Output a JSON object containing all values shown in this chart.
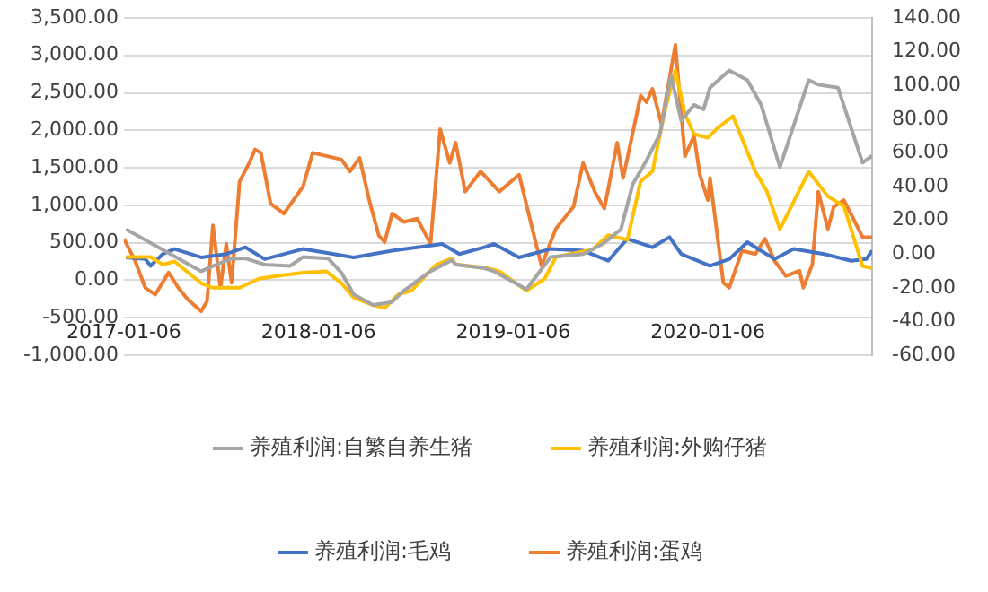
{
  "chart_data": {
    "type": "line",
    "xlim": [
      "2017-01-06",
      "2020-11-09"
    ],
    "xticks": [
      "2017-01-06",
      "2018-01-06",
      "2019-01-06",
      "2020-01-06"
    ],
    "ylim": [
      -1000,
      3500
    ],
    "yticks": [
      {
        "value": -1000,
        "label": "-1,000.00"
      },
      {
        "value": -500,
        "label": "-500.00"
      },
      {
        "value": 0,
        "label": "0.00"
      },
      {
        "value": 500,
        "label": "500.00"
      },
      {
        "value": 1000,
        "label": "1,000.00"
      },
      {
        "value": 1500,
        "label": "1,500.00"
      },
      {
        "value": 2000,
        "label": "2,000.00"
      },
      {
        "value": 2500,
        "label": "2,500.00"
      },
      {
        "value": 3000,
        "label": "3,000.00"
      },
      {
        "value": 3500,
        "label": "3,500.00"
      }
    ],
    "y2lim": [
      -60,
      140
    ],
    "y2ticks": [
      {
        "value": -60,
        "label": "-60.00"
      },
      {
        "value": -40,
        "label": "-40.00"
      },
      {
        "value": -20,
        "label": "-20.00"
      },
      {
        "value": 0,
        "label": "0.00"
      },
      {
        "value": 20,
        "label": "20.00"
      },
      {
        "value": 40,
        "label": "40.00"
      },
      {
        "value": 60,
        "label": "60.00"
      },
      {
        "value": 80,
        "label": "80.00"
      },
      {
        "value": 100,
        "label": "100.00"
      },
      {
        "value": 120,
        "label": "120.00"
      },
      {
        "value": 140,
        "label": "140.00"
      }
    ],
    "grid": "y",
    "legend": "bottom",
    "marker": "none",
    "line_style": "solid",
    "series": [
      {
        "name": "养殖利润:自繁自养生猪",
        "color": "#a5a5a5",
        "x": [
          "2017-01-10",
          "2017-05-31",
          "2017-06-22",
          "2017-07-27",
          "2017-08-22",
          "2017-09-27",
          "2017-11-13",
          "2017-12-08",
          "2018-01-24",
          "2018-02-18",
          "2018-03-13",
          "2018-04-18",
          "2018-05-24",
          "2018-06-15",
          "2018-08-04",
          "2018-09-13",
          "2018-09-20",
          "2018-11-13",
          "2018-12-01",
          "2019-01-31",
          "2019-03-17",
          "2019-05-17",
          "2019-06-22",
          "2019-07-27",
          "2019-08-18",
          "2019-09-13",
          "2019-10-08",
          "2019-10-29",
          "2019-11-17",
          "2019-12-11",
          "2019-12-29",
          "2020-01-10",
          "2020-02-15",
          "2020-03-20",
          "2020-04-15",
          "2020-05-20",
          "2020-07-13",
          "2020-07-31",
          "2020-09-06",
          "2020-10-22",
          "2020-11-09"
        ],
        "values": [
          680,
          120,
          190,
          290,
          290,
          210,
          190,
          310,
          290,
          100,
          -190,
          -330,
          -290,
          -140,
          120,
          270,
          210,
          160,
          120,
          -120,
          310,
          350,
          480,
          680,
          1280,
          1600,
          1950,
          2730,
          2130,
          2340,
          2280,
          2570,
          2800,
          2670,
          2340,
          1510,
          2670,
          2610,
          2570,
          1570,
          1660
        ]
      },
      {
        "name": "养殖利润:外购仔猪",
        "color": "#ffc000",
        "x": [
          "2017-01-10",
          "2017-02-25",
          "2017-03-20",
          "2017-04-11",
          "2017-05-31",
          "2017-06-22",
          "2017-08-11",
          "2017-09-16",
          "2017-10-22",
          "2017-12-08",
          "2018-01-20",
          "2018-02-18",
          "2018-03-13",
          "2018-04-18",
          "2018-05-10",
          "2018-06-04",
          "2018-06-29",
          "2018-07-20",
          "2018-08-15",
          "2018-09-13",
          "2018-09-20",
          "2018-11-13",
          "2018-12-11",
          "2019-01-31",
          "2019-03-06",
          "2019-03-27",
          "2019-06-04",
          "2019-07-03",
          "2019-08-08",
          "2019-09-02",
          "2019-09-24",
          "2019-10-18",
          "2019-11-06",
          "2019-11-24",
          "2019-12-11",
          "2020-01-06",
          "2020-01-24",
          "2020-02-22",
          "2020-04-04",
          "2020-04-26",
          "2020-05-20",
          "2020-07-13",
          "2020-08-18",
          "2020-09-17",
          "2020-10-22",
          "2020-11-09"
        ],
        "values": [
          310,
          310,
          210,
          250,
          -40,
          -100,
          -100,
          20,
          60,
          100,
          120,
          -40,
          -230,
          -330,
          -370,
          -190,
          -140,
          20,
          210,
          290,
          210,
          170,
          120,
          -140,
          20,
          310,
          410,
          600,
          540,
          1320,
          1450,
          2280,
          2800,
          2220,
          1950,
          1900,
          2030,
          2190,
          1450,
          1180,
          680,
          1450,
          1120,
          990,
          190,
          160
        ]
      },
      {
        "name": "养殖利润:毛鸡",
        "color": "#4472c4",
        "axis": "y2",
        "x": [
          "2017-01-10",
          "2017-02-15",
          "2017-02-25",
          "2017-03-20",
          "2017-04-11",
          "2017-05-31",
          "2017-07-17",
          "2017-08-22",
          "2017-09-27",
          "2017-12-08",
          "2018-03-13",
          "2018-05-24",
          "2018-08-26",
          "2018-09-27",
          "2018-11-13",
          "2018-12-01",
          "2019-01-17",
          "2019-03-17",
          "2019-05-17",
          "2019-07-03",
          "2019-08-08",
          "2019-09-24",
          "2019-10-26",
          "2019-11-17",
          "2020-01-10",
          "2020-02-15",
          "2020-03-20",
          "2020-05-10",
          "2020-06-15",
          "2020-08-11",
          "2020-10-01",
          "2020-10-29",
          "2020-11-09"
        ],
        "values": [
          -2,
          -3,
          -7,
          0,
          3,
          -2,
          0,
          4,
          -3,
          3,
          -2,
          2,
          6,
          0,
          4,
          6,
          -2,
          3,
          2,
          -4,
          9,
          4,
          10,
          0,
          -7,
          -3,
          7,
          -3,
          3,
          0,
          -4,
          -3,
          2
        ]
      },
      {
        "name": "养殖利润:蛋鸡",
        "color": "#ed7d31",
        "axis": "y2",
        "x": [
          "2017-01-06",
          "2017-01-27",
          "2017-02-15",
          "2017-03-06",
          "2017-03-31",
          "2017-04-18",
          "2017-05-06",
          "2017-05-31",
          "2017-06-11",
          "2017-06-22",
          "2017-07-06",
          "2017-07-17",
          "2017-07-27",
          "2017-08-11",
          "2017-08-29",
          "2017-09-09",
          "2017-09-20",
          "2017-10-08",
          "2017-11-02",
          "2017-12-08",
          "2017-12-26",
          "2018-02-18",
          "2018-03-06",
          "2018-03-24",
          "2018-04-11",
          "2018-04-29",
          "2018-05-10",
          "2018-05-24",
          "2018-06-15",
          "2018-07-10",
          "2018-08-04",
          "2018-08-22",
          "2018-09-09",
          "2018-09-20",
          "2018-10-08",
          "2018-11-06",
          "2018-12-11",
          "2019-01-17",
          "2019-02-28",
          "2019-03-27",
          "2019-04-29",
          "2019-05-17",
          "2019-06-08",
          "2019-06-26",
          "2019-07-20",
          "2019-07-31",
          "2019-09-02",
          "2019-09-13",
          "2019-09-24",
          "2019-10-11",
          "2019-11-06",
          "2019-11-24",
          "2019-12-11",
          "2019-12-22",
          "2020-01-06",
          "2020-01-10",
          "2020-02-04",
          "2020-02-15",
          "2020-03-10",
          "2020-04-04",
          "2020-04-22",
          "2020-05-10",
          "2020-05-31",
          "2020-06-26",
          "2020-07-03",
          "2020-07-20",
          "2020-07-31",
          "2020-08-18",
          "2020-08-29",
          "2020-09-17",
          "2020-10-11",
          "2020-10-22",
          "2020-11-09"
        ],
        "values": [
          9,
          -4,
          -20,
          -24,
          -11,
          -20,
          -27,
          -34,
          -28,
          17,
          -20,
          6,
          -17,
          43,
          54,
          62,
          60,
          30,
          24,
          40,
          60,
          56,
          49,
          57,
          32,
          11,
          7,
          24,
          19,
          21,
          6,
          74,
          54,
          66,
          37,
          49,
          37,
          47,
          -7,
          15,
          28,
          54,
          37,
          27,
          66,
          45,
          94,
          90,
          98,
          77,
          124,
          58,
          70,
          47,
          32,
          45,
          -17,
          -20,
          2,
          0,
          9,
          -4,
          -13,
          -10,
          -20,
          -6,
          37,
          15,
          28,
          32,
          17,
          10,
          10
        ]
      }
    ]
  }
}
